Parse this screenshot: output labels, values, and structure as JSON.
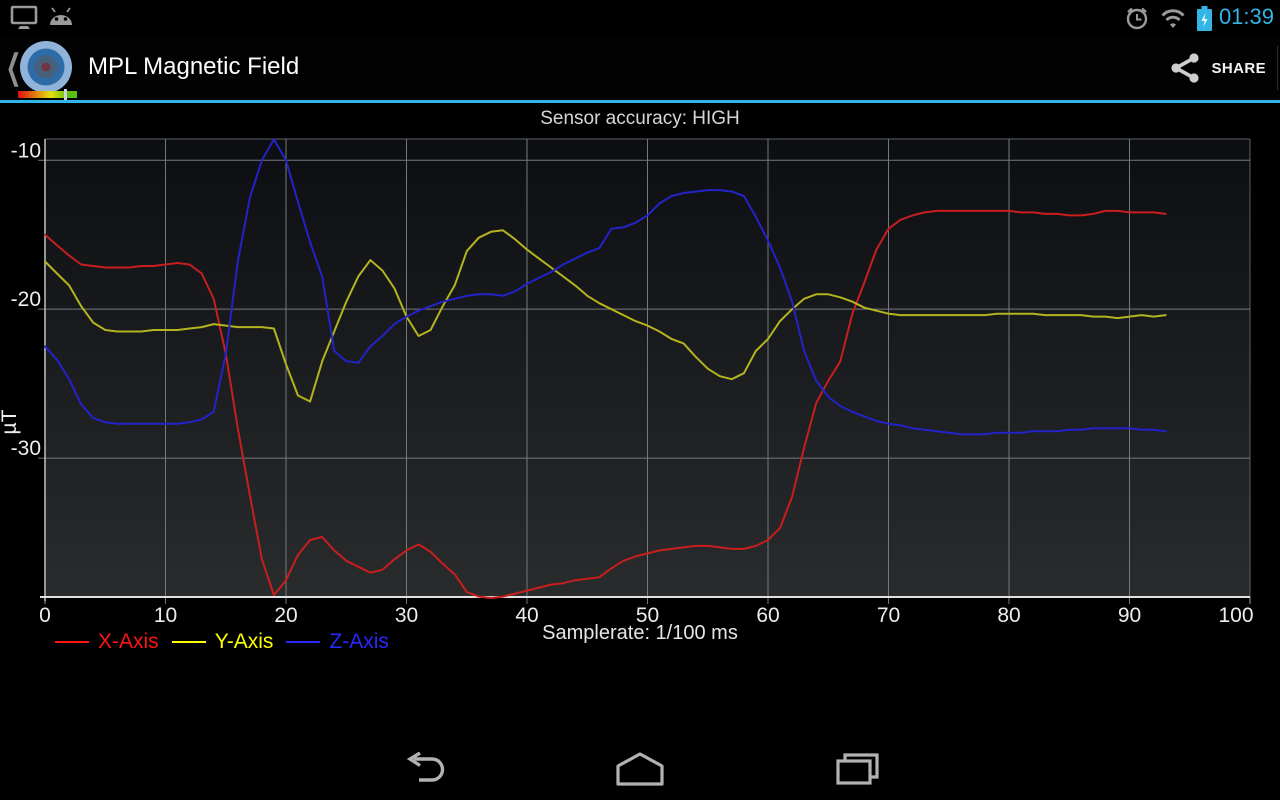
{
  "status_bar": {
    "time": "01:39",
    "left_icons": [
      "display-mirroring-icon",
      "android-debug-icon"
    ],
    "right_icons": [
      "alarm-icon",
      "wifi-icon",
      "battery-charging-icon"
    ],
    "accent_color": "#33b5e5"
  },
  "action_bar": {
    "title": "MPL Magnetic Field",
    "share_label": "SHARE",
    "underline_color": "#33b5e5"
  },
  "status_text": "Sensor accuracy: HIGH",
  "chart_data": {
    "type": "line",
    "title": "",
    "xlabel": "Samplerate: 1/100 ms",
    "ylabel": "µT",
    "xlim": [
      0,
      100
    ],
    "ylim": [
      -39.33,
      -8.57
    ],
    "x_ticks": [
      0,
      10,
      20,
      30,
      40,
      50,
      60,
      70,
      80,
      90,
      100
    ],
    "y_ticks": [
      -10,
      -20,
      -30
    ],
    "grid": true,
    "legend_position": "bottom-left",
    "x_start": 0,
    "x_step": 1,
    "series": [
      {
        "name": "X-Axis",
        "color": "#c81e1e",
        "values": [
          -15.0,
          -15.7,
          -16.4,
          -17.0,
          -17.1,
          -17.2,
          -17.2,
          -17.2,
          -17.1,
          -17.1,
          -17.0,
          -16.9,
          -17.0,
          -17.6,
          -19.3,
          -23.0,
          -28.0,
          -32.5,
          -36.8,
          -39.2,
          -38.2,
          -36.5,
          -35.5,
          -35.3,
          -36.2,
          -36.9,
          -37.3,
          -37.7,
          -37.5,
          -36.8,
          -36.2,
          -35.8,
          -36.3,
          -37.1,
          -37.8,
          -39.0,
          -39.3,
          -39.4,
          -39.3,
          -39.1,
          -38.9,
          -38.7,
          -38.5,
          -38.4,
          -38.2,
          -38.1,
          -38.0,
          -37.4,
          -36.9,
          -36.6,
          -36.4,
          -36.2,
          -36.1,
          -36.0,
          -35.9,
          -35.9,
          -36.0,
          -36.1,
          -36.1,
          -35.9,
          -35.5,
          -34.7,
          -32.6,
          -29.3,
          -26.3,
          -24.8,
          -23.5,
          -20.3,
          -18.2,
          -16.0,
          -14.6,
          -14.0,
          -13.7,
          -13.5,
          -13.4,
          -13.4,
          -13.4,
          -13.4,
          -13.4,
          -13.4,
          -13.4,
          -13.5,
          -13.5,
          -13.6,
          -13.6,
          -13.7,
          -13.7,
          -13.6,
          -13.4,
          -13.4,
          -13.5,
          -13.5,
          -13.5,
          -13.6
        ]
      },
      {
        "name": "Y-Axis",
        "color": "#b4b41e",
        "values": [
          -16.8,
          -17.6,
          -18.4,
          -19.8,
          -20.9,
          -21.4,
          -21.5,
          -21.5,
          -21.5,
          -21.4,
          -21.4,
          -21.4,
          -21.3,
          -21.2,
          -21.0,
          -21.1,
          -21.2,
          -21.2,
          -21.2,
          -21.3,
          -23.7,
          -25.8,
          -26.2,
          -23.5,
          -21.5,
          -19.5,
          -17.8,
          -16.7,
          -17.4,
          -18.6,
          -20.5,
          -21.8,
          -21.4,
          -19.8,
          -18.4,
          -16.1,
          -15.2,
          -14.8,
          -14.7,
          -15.3,
          -16.0,
          -16.6,
          -17.2,
          -17.8,
          -18.4,
          -19.1,
          -19.6,
          -20.0,
          -20.4,
          -20.8,
          -21.1,
          -21.5,
          -22.0,
          -22.3,
          -23.2,
          -24.0,
          -24.5,
          -24.7,
          -24.3,
          -22.8,
          -22.0,
          -20.8,
          -20.0,
          -19.3,
          -19.0,
          -19.0,
          -19.2,
          -19.5,
          -19.9,
          -20.1,
          -20.3,
          -20.4,
          -20.4,
          -20.4,
          -20.4,
          -20.4,
          -20.4,
          -20.4,
          -20.4,
          -20.3,
          -20.3,
          -20.3,
          -20.3,
          -20.4,
          -20.4,
          -20.4,
          -20.4,
          -20.5,
          -20.5,
          -20.6,
          -20.5,
          -20.4,
          -20.5,
          -20.4
        ]
      },
      {
        "name": "Z-Axis",
        "color": "#2323c8",
        "values": [
          -22.5,
          -23.4,
          -24.7,
          -26.4,
          -27.3,
          -27.6,
          -27.7,
          -27.7,
          -27.7,
          -27.7,
          -27.7,
          -27.7,
          -27.6,
          -27.4,
          -26.9,
          -23.0,
          -16.8,
          -12.5,
          -10.0,
          -8.6,
          -10.0,
          -12.8,
          -15.5,
          -17.8,
          -22.8,
          -23.5,
          -23.6,
          -22.5,
          -21.8,
          -21.0,
          -20.5,
          -20.1,
          -19.8,
          -19.5,
          -19.3,
          -19.1,
          -19.0,
          -19.0,
          -19.1,
          -18.8,
          -18.3,
          -17.9,
          -17.5,
          -17.0,
          -16.6,
          -16.2,
          -15.9,
          -14.6,
          -14.5,
          -14.2,
          -13.7,
          -12.9,
          -12.4,
          -12.2,
          -12.1,
          -12.0,
          -12.0,
          -12.1,
          -12.4,
          -13.8,
          -15.4,
          -17.2,
          -19.5,
          -22.8,
          -24.8,
          -25.9,
          -26.5,
          -26.9,
          -27.2,
          -27.5,
          -27.7,
          -27.8,
          -28.0,
          -28.1,
          -28.2,
          -28.3,
          -28.4,
          -28.4,
          -28.4,
          -28.3,
          -28.3,
          -28.3,
          -28.2,
          -28.2,
          -28.2,
          -28.1,
          -28.1,
          -28.0,
          -28.0,
          -28.0,
          -28.0,
          -28.1,
          -28.1,
          -28.2
        ]
      }
    ],
    "legend": [
      {
        "label": "X-Axis",
        "color": "#ff1414"
      },
      {
        "label": "Y-Axis",
        "color": "#ffff00"
      },
      {
        "label": "Z-Axis",
        "color": "#2828ff"
      }
    ]
  },
  "nav_bar": {
    "icons": [
      "back-icon",
      "home-icon",
      "recents-icon"
    ]
  }
}
